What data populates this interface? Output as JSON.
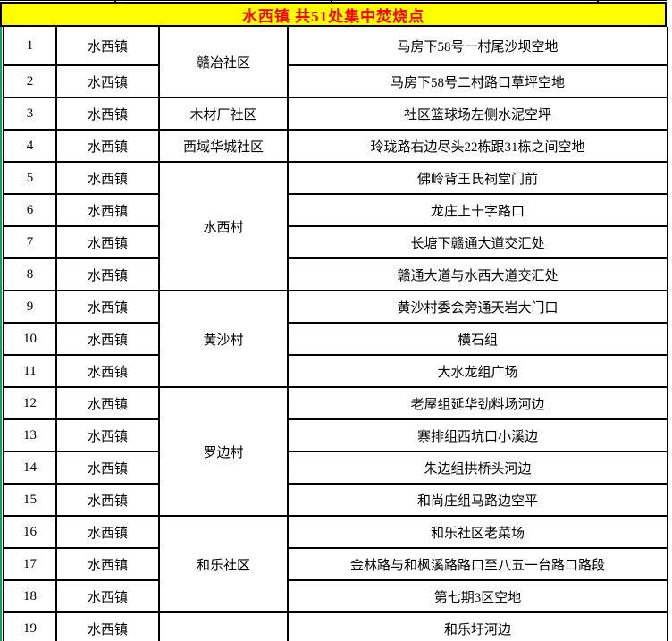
{
  "banner": {
    "title": "水西镇 共51处集中焚烧点"
  },
  "table": {
    "rows": [
      {
        "no": "1",
        "town": "水西镇",
        "community": "赣冶社区",
        "community_rowspan": 2,
        "location": "马房下58号一村尾沙坝空地"
      },
      {
        "no": "2",
        "town": "水西镇",
        "community": null,
        "location": "马房下58号二村路口草坪空地"
      },
      {
        "no": "3",
        "town": "水西镇",
        "community": "木材厂社区",
        "community_rowspan": 1,
        "location": "社区篮球场左侧水泥空坪"
      },
      {
        "no": "4",
        "town": "水西镇",
        "community": "西域华城社区",
        "community_rowspan": 1,
        "location": "玲珑路右边尽头22栋跟31栋之间空地"
      },
      {
        "no": "5",
        "town": "水西镇",
        "community": "水西村",
        "community_rowspan": 4,
        "location": "佛岭背王氏祠堂门前"
      },
      {
        "no": "6",
        "town": "水西镇",
        "community": null,
        "location": "龙庄上十字路口"
      },
      {
        "no": "7",
        "town": "水西镇",
        "community": null,
        "location": "长塘下赣通大道交汇处"
      },
      {
        "no": "8",
        "town": "水西镇",
        "community": null,
        "location": "赣通大道与水西大道交汇处"
      },
      {
        "no": "9",
        "town": "水西镇",
        "community": "黄沙村",
        "community_rowspan": 3,
        "location": "黄沙村委会旁通天岩大门口"
      },
      {
        "no": "10",
        "town": "水西镇",
        "community": null,
        "location": "横石组"
      },
      {
        "no": "11",
        "town": "水西镇",
        "community": null,
        "location": "大水龙组广场"
      },
      {
        "no": "12",
        "town": "水西镇",
        "community": "罗边村",
        "community_rowspan": 4,
        "location": "老屋组延华劲料场河边"
      },
      {
        "no": "13",
        "town": "水西镇",
        "community": null,
        "location": "寨排组西坑口小溪边"
      },
      {
        "no": "14",
        "town": "水西镇",
        "community": null,
        "location": "朱边组拱桥头河边"
      },
      {
        "no": "15",
        "town": "水西镇",
        "community": null,
        "location": "和尚庄组马路边空平"
      },
      {
        "no": "16",
        "town": "水西镇",
        "community": "和乐社区",
        "community_rowspan": 3,
        "location": "和乐社区老菜场"
      },
      {
        "no": "17",
        "town": "水西镇",
        "community": null,
        "location": "金林路与和枫溪路路口至八五一台路口路段"
      },
      {
        "no": "18",
        "town": "水西镇",
        "community": null,
        "location": "第七期3区空地"
      },
      {
        "no": "19",
        "town": "水西镇",
        "community": "",
        "community_rowspan": 1,
        "location": "和乐圩河边"
      }
    ]
  },
  "colors": {
    "banner_bg": "#FFFF00",
    "banner_text": "#FF0000",
    "border": "#000000",
    "edge_strip": "#0EA25E",
    "cell_bg": "#FFFFFF"
  }
}
